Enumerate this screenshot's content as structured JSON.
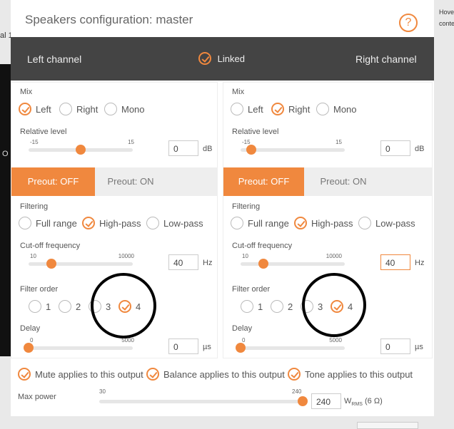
{
  "background": {
    "left_text": "al 1",
    "left_text2": "O",
    "right_text1": "Hove",
    "right_text2": "conte"
  },
  "modal": {
    "title": "Speakers configuration: master",
    "help_icon": "?"
  },
  "band": {
    "left": "Left channel",
    "linked": "Linked",
    "linked_checked": true,
    "right": "Right channel"
  },
  "channels": [
    {
      "mix_label": "Mix",
      "mix_options": [
        "Left",
        "Right",
        "Mono"
      ],
      "mix_selected": 0,
      "rel_label": "Relative level",
      "rel_min": "-15",
      "rel_max": "15",
      "rel_value": "0",
      "rel_unit": "dB",
      "preout_off": "Preout: OFF",
      "preout_on": "Preout: ON",
      "filter_label": "Filtering",
      "filter_options": [
        "Full range",
        "High-pass",
        "Low-pass"
      ],
      "filter_selected": 1,
      "cut_label": "Cut-off frequency",
      "cut_min": "10",
      "cut_max": "10000",
      "cut_value": "40",
      "cut_unit": "Hz",
      "order_label": "Filter order",
      "order_options": [
        "1",
        "2",
        "3",
        "4"
      ],
      "order_selected": 3,
      "delay_label": "Delay",
      "delay_min": "0",
      "delay_max": "5000",
      "delay_value": "0",
      "delay_unit": "µs"
    },
    {
      "mix_label": "Mix",
      "mix_options": [
        "Left",
        "Right",
        "Mono"
      ],
      "mix_selected": 1,
      "rel_label": "Relative level",
      "rel_min": "-15",
      "rel_max": "15",
      "rel_value": "0",
      "rel_unit": "dB",
      "preout_off": "Preout: OFF",
      "preout_on": "Preout: ON",
      "filter_label": "Filtering",
      "filter_options": [
        "Full range",
        "High-pass",
        "Low-pass"
      ],
      "filter_selected": 1,
      "cut_label": "Cut-off frequency",
      "cut_min": "10",
      "cut_max": "10000",
      "cut_value": "40",
      "cut_unit": "Hz",
      "order_label": "Filter order",
      "order_options": [
        "1",
        "2",
        "3",
        "4"
      ],
      "order_selected": 3,
      "delay_label": "Delay",
      "delay_min": "0",
      "delay_max": "5000",
      "delay_value": "0",
      "delay_unit": "µs"
    }
  ],
  "outputs": {
    "mute": "Mute applies to this output",
    "balance": "Balance applies to this output",
    "tone": "Tone applies to this output"
  },
  "max_power": {
    "label": "Max power",
    "min": "30",
    "max": "240",
    "value": "240",
    "unit": "W",
    "unit_sub": "RMS",
    "unit_suffix": "(6 Ω)"
  },
  "accent": "#f0883e"
}
